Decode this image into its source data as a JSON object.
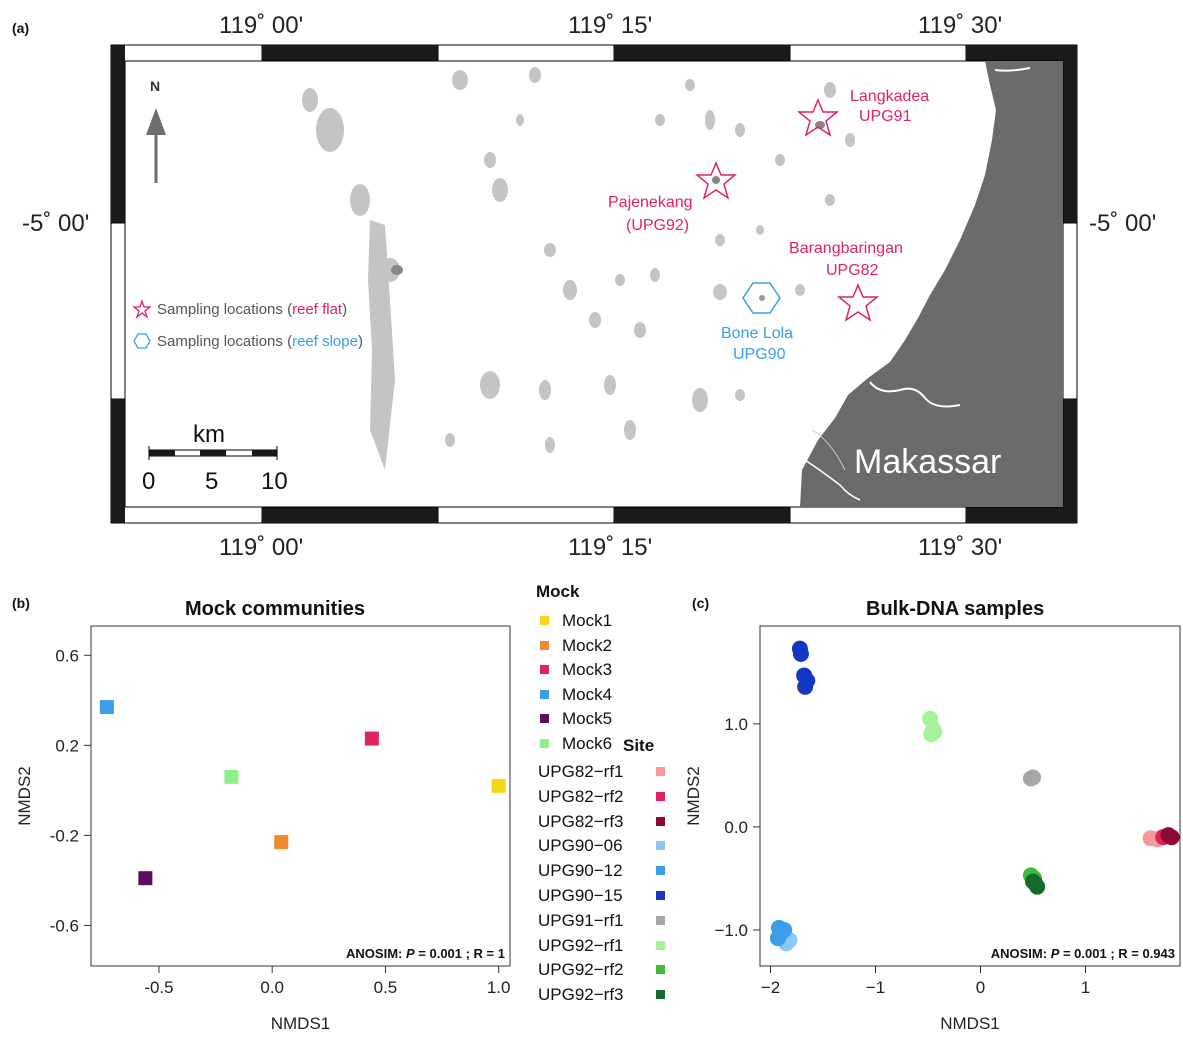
{
  "panel_a": {
    "label": "(a)",
    "top_labels": [
      "119˚ 00'",
      "119˚ 15'",
      "119˚ 30'"
    ],
    "bottom_labels": [
      "119˚ 00'",
      "119˚ 15'",
      "119˚ 30'"
    ],
    "left_label": "-5˚ 00'",
    "right_label": "-5˚ 00'",
    "north": "N",
    "scale": {
      "unit": "km",
      "ticks": [
        "0",
        "5",
        "10"
      ]
    },
    "city": "Makassar",
    "sites": [
      {
        "line1": "Langkadea",
        "line2": "UPG91",
        "marker": "star",
        "color": "#e0245e"
      },
      {
        "line1": "Pajenekang",
        "line2": "(UPG92)",
        "marker": "star",
        "color": "#e0245e"
      },
      {
        "line1": "Barangbaringan",
        "line2": "UPG82",
        "marker": "star",
        "color": "#e0245e"
      },
      {
        "line1": "Bone Lola",
        "line2": "UPG90",
        "marker": "hexagon",
        "color": "#3a9ee8"
      }
    ],
    "legend": [
      {
        "prefix": "Sampling locations (",
        "highlight": "reef flat",
        "suffix": ")",
        "color": "#e0245e"
      },
      {
        "prefix": "Sampling locations (",
        "highlight": "reef slope",
        "suffix": ")",
        "color": "#3a9ee8"
      }
    ]
  },
  "panel_b": {
    "label": "(b)",
    "chart_data": {
      "type": "scatter",
      "title": "Mock communities",
      "xlabel": "NMDS1",
      "ylabel": "NMDS2",
      "xlim": [
        -0.8,
        1.05
      ],
      "ylim": [
        -0.78,
        0.73
      ],
      "xticks": [
        -0.5,
        0.0,
        0.5,
        1.0
      ],
      "xtick_labels": [
        "-0.5",
        "0.0",
        "0.5",
        "1.0"
      ],
      "yticks": [
        -0.6,
        -0.2,
        0.2,
        0.6
      ],
      "ytick_labels": [
        "-0.6",
        "-0.2",
        "0.2",
        "0.6"
      ],
      "points": [
        {
          "name": "Mock1",
          "x": 1.0,
          "y": 0.02,
          "color": "#f6d516"
        },
        {
          "name": "Mock2",
          "x": 0.04,
          "y": -0.23,
          "color": "#f08a2c"
        },
        {
          "name": "Mock3",
          "x": 0.44,
          "y": 0.23,
          "color": "#e0245e"
        },
        {
          "name": "Mock4",
          "x": -0.73,
          "y": 0.37,
          "color": "#3a9ee8"
        },
        {
          "name": "Mock5",
          "x": -0.56,
          "y": -0.39,
          "color": "#5c0f5c"
        },
        {
          "name": "Mock6",
          "x": -0.18,
          "y": 0.06,
          "color": "#8ef08a"
        }
      ],
      "annotation_prefix": "ANOSIM: ",
      "annotation_p": "P",
      "annotation_suffix": " = 0.001 ; R = 1"
    }
  },
  "legend": {
    "mock_title": "Mock",
    "mock_items": [
      {
        "label": "Mock1",
        "color": "#f6d516"
      },
      {
        "label": "Mock2",
        "color": "#f08a2c"
      },
      {
        "label": "Mock3",
        "color": "#e0245e"
      },
      {
        "label": "Mock4",
        "color": "#3a9ee8"
      },
      {
        "label": "Mock5",
        "color": "#5c0f5c"
      },
      {
        "label": "Mock6",
        "color": "#8ef08a"
      }
    ],
    "site_title": "Site",
    "site_items": [
      {
        "label": "UPG82−rf1",
        "color": "#f59a9a"
      },
      {
        "label": "UPG82−rf2",
        "color": "#e0245e"
      },
      {
        "label": "UPG82−rf3",
        "color": "#8b0a2e"
      },
      {
        "label": "UPG90−06",
        "color": "#8ec8f5"
      },
      {
        "label": "UPG90−12",
        "color": "#3a9ee8"
      },
      {
        "label": "UPG90−15",
        "color": "#1438c4"
      },
      {
        "label": "UPG91−rf1",
        "color": "#a6a6a6"
      },
      {
        "label": "UPG92−rf1",
        "color": "#a6f29a"
      },
      {
        "label": "UPG92−rf2",
        "color": "#3dbb3d"
      },
      {
        "label": "UPG92−rf3",
        "color": "#136b2c"
      }
    ]
  },
  "panel_c": {
    "label": "(c)",
    "chart_data": {
      "type": "scatter",
      "title": "Bulk-DNA samples",
      "xlabel": "NMDS1",
      "ylabel": "NMDS2",
      "xlim": [
        -2.1,
        1.9
      ],
      "ylim": [
        -1.35,
        1.95
      ],
      "xticks": [
        -2,
        -1,
        0,
        1
      ],
      "xtick_labels": [
        "−2",
        "−1",
        "0",
        "1"
      ],
      "yticks": [
        -1.0,
        0.0,
        1.0
      ],
      "ytick_labels": [
        "−1.0",
        "0.0",
        "1.0"
      ],
      "series": [
        {
          "name": "UPG82−rf1",
          "color": "#f59a9a",
          "points": [
            [
              1.62,
              -0.11
            ],
            [
              1.68,
              -0.12
            ],
            [
              1.73,
              -0.1
            ]
          ]
        },
        {
          "name": "UPG82−rf2",
          "color": "#e0245e",
          "points": [
            [
              1.74,
              -0.1
            ],
            [
              1.77,
              -0.09
            ]
          ]
        },
        {
          "name": "UPG82−rf3",
          "color": "#8b0a2e",
          "points": [
            [
              1.8,
              -0.09
            ],
            [
              1.82,
              -0.1
            ],
            [
              1.79,
              -0.08
            ]
          ]
        },
        {
          "name": "UPG90−06",
          "color": "#8ec8f5",
          "points": [
            [
              -1.82,
              -1.1
            ],
            [
              -1.88,
              -1.05
            ],
            [
              -1.85,
              -1.13
            ]
          ]
        },
        {
          "name": "UPG90−12",
          "color": "#3a9ee8",
          "points": [
            [
              -1.92,
              -0.98
            ],
            [
              -1.9,
              -1.03
            ],
            [
              -1.93,
              -1.08
            ],
            [
              -1.87,
              -1.0
            ]
          ]
        },
        {
          "name": "UPG90−15",
          "color": "#1438c4",
          "points": [
            [
              -1.72,
              1.73
            ],
            [
              -1.71,
              1.68
            ],
            [
              -1.68,
              1.47
            ],
            [
              -1.65,
              1.42
            ],
            [
              -1.67,
              1.36
            ]
          ]
        },
        {
          "name": "UPG91−rf1",
          "color": "#a6a6a6",
          "points": [
            [
              0.48,
              0.47
            ],
            [
              0.5,
              0.48
            ]
          ]
        },
        {
          "name": "UPG92−rf1",
          "color": "#a6f29a",
          "points": [
            [
              -0.48,
              1.05
            ],
            [
              -0.45,
              0.95
            ],
            [
              -0.47,
              0.9
            ],
            [
              -0.44,
              0.92
            ]
          ]
        },
        {
          "name": "UPG92−rf2",
          "color": "#3dbb3d",
          "points": [
            [
              0.48,
              -0.47
            ],
            [
              0.51,
              -0.5
            ]
          ]
        },
        {
          "name": "UPG92−rf3",
          "color": "#136b2c",
          "points": [
            [
              0.52,
              -0.55
            ],
            [
              0.54,
              -0.58
            ],
            [
              0.5,
              -0.53
            ]
          ]
        }
      ],
      "annotation_prefix": "ANOSIM: ",
      "annotation_p": "P",
      "annotation_suffix": " = 0.001 ; R = 0.943"
    }
  }
}
